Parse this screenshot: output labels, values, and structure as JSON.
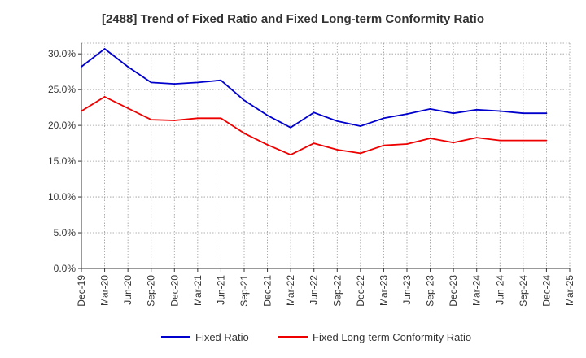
{
  "chart_data": {
    "type": "line",
    "title": "[2488]  Trend of Fixed Ratio and Fixed Long-term Conformity Ratio",
    "xlabel": "",
    "ylabel": "",
    "x": [
      "Dec-19",
      "Mar-20",
      "Jun-20",
      "Sep-20",
      "Dec-20",
      "Mar-21",
      "Jun-21",
      "Sep-21",
      "Dec-21",
      "Mar-22",
      "Jun-22",
      "Sep-22",
      "Dec-22",
      "Mar-23",
      "Jun-23",
      "Sep-23",
      "Dec-23",
      "Mar-24",
      "Jun-24",
      "Sep-24",
      "Dec-24",
      "Mar-25"
    ],
    "ylim": [
      0,
      31.5
    ],
    "yticks": [
      0,
      5,
      10,
      15,
      20,
      25,
      30
    ],
    "ytick_labels": [
      "0.0%",
      "5.0%",
      "10.0%",
      "15.0%",
      "20.0%",
      "25.0%",
      "30.0%"
    ],
    "grid": true,
    "legend_position": "bottom",
    "series": [
      {
        "name": "Fixed Ratio",
        "color": "#0000cc",
        "values": [
          28.2,
          30.7,
          28.2,
          26.0,
          25.8,
          26.0,
          26.3,
          23.5,
          21.4,
          19.7,
          21.8,
          20.6,
          19.9,
          21.0,
          21.6,
          22.3,
          21.7,
          22.2,
          22.0,
          21.7,
          21.7,
          null
        ]
      },
      {
        "name": "Fixed Long-term Conformity Ratio",
        "color": "#ee0000",
        "values": [
          22.0,
          24.0,
          22.4,
          20.8,
          20.7,
          21.0,
          21.0,
          18.9,
          17.3,
          15.9,
          17.5,
          16.6,
          16.1,
          17.2,
          17.4,
          18.2,
          17.6,
          18.3,
          17.9,
          17.9,
          17.9,
          null
        ]
      }
    ]
  }
}
